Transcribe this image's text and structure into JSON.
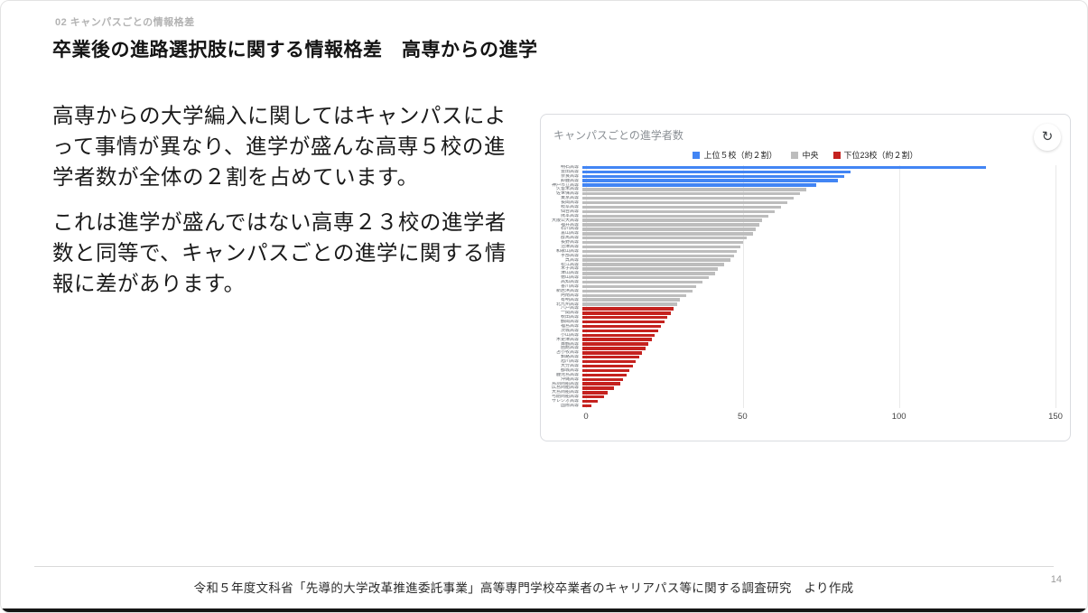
{
  "slide": {
    "eyebrow": "02 キャンパスごとの情報格差",
    "title": "卒業後の進路選択肢に関する情報格差　高専からの進学",
    "paragraphs": {
      "p1": "高専からの大学編入に関してはキャンパスによって事情が異なり、進学が盛んな高専５校の進学者数が全体の２割を占めています。",
      "p2": "これは進学が盛んではない高専２３校の進学者数と同等で、キャンパスごとの進学に関する情報に差があります。"
    },
    "footer": "令和５年度文科省「先導的大学改革推進委託事業」高等専門学校卒業者のキャリアパス等に関する調査研究　より作成",
    "page_number": "14"
  },
  "chart_data": {
    "type": "bar",
    "orientation": "horizontal",
    "title": "キャンパスごとの進学者数",
    "refresh_icon": "refresh-icon",
    "xlabel": "",
    "ylabel": "",
    "xlim": [
      0,
      150
    ],
    "xticks": [
      0,
      50,
      100,
      150
    ],
    "grid": true,
    "legend_position": "top-center",
    "legend": [
      {
        "label": "上位５校（約２割）",
        "tier": "top",
        "color": "#4285f4"
      },
      {
        "label": "中央",
        "tier": "mid",
        "color": "#bdbdbd"
      },
      {
        "label": "下位23校（約２割）",
        "tier": "low",
        "color": "#c5221f"
      }
    ],
    "tier_colors": {
      "top": "#4285f4",
      "mid": "#bdbdbd",
      "low": "#c5221f"
    },
    "bars": [
      {
        "label": "明石高専",
        "value": 128,
        "tier": "top"
      },
      {
        "label": "豊田高専",
        "value": 85,
        "tier": "top"
      },
      {
        "label": "奈良高専",
        "value": 83,
        "tier": "top"
      },
      {
        "label": "鈴鹿高専",
        "value": 81,
        "tier": "top"
      },
      {
        "label": "神戸市立高専",
        "value": 74,
        "tier": "top"
      },
      {
        "label": "久留米高専",
        "value": 71,
        "tier": "mid"
      },
      {
        "label": "佐世保高専",
        "value": 69,
        "tier": "mid"
      },
      {
        "label": "東京高専",
        "value": 67,
        "tier": "mid"
      },
      {
        "label": "長岡高専",
        "value": 65,
        "tier": "mid"
      },
      {
        "label": "岐阜高専",
        "value": 63,
        "tier": "mid"
      },
      {
        "label": "仙台高専",
        "value": 61,
        "tier": "mid"
      },
      {
        "label": "熊本高専",
        "value": 59,
        "tier": "mid"
      },
      {
        "label": "大阪公大高専",
        "value": 57,
        "tier": "mid"
      },
      {
        "label": "福井高専",
        "value": 56,
        "tier": "mid"
      },
      {
        "label": "石川高専",
        "value": 55,
        "tier": "mid"
      },
      {
        "label": "富山高専",
        "value": 54,
        "tier": "mid"
      },
      {
        "label": "群馬高専",
        "value": 52,
        "tier": "mid"
      },
      {
        "label": "長野高専",
        "value": 51,
        "tier": "mid"
      },
      {
        "label": "沼津高専",
        "value": 50,
        "tier": "mid"
      },
      {
        "label": "和歌山高専",
        "value": 49,
        "tier": "mid"
      },
      {
        "label": "宇部高専",
        "value": 48,
        "tier": "mid"
      },
      {
        "label": "呉高専",
        "value": 47,
        "tier": "mid"
      },
      {
        "label": "松江高専",
        "value": 45,
        "tier": "mid"
      },
      {
        "label": "米子高専",
        "value": 43,
        "tier": "mid"
      },
      {
        "label": "津山高専",
        "value": 42,
        "tier": "mid"
      },
      {
        "label": "徳山高専",
        "value": 40,
        "tier": "mid"
      },
      {
        "label": "高知高専",
        "value": 38,
        "tier": "mid"
      },
      {
        "label": "香川高専",
        "value": 36,
        "tier": "mid"
      },
      {
        "label": "新居浜高専",
        "value": 35,
        "tier": "mid"
      },
      {
        "label": "阿南高専",
        "value": 33,
        "tier": "mid"
      },
      {
        "label": "有明高専",
        "value": 31,
        "tier": "mid"
      },
      {
        "label": "北九州高専",
        "value": 30,
        "tier": "mid"
      },
      {
        "label": "八戸高専",
        "value": 29,
        "tier": "low"
      },
      {
        "label": "一関高専",
        "value": 28,
        "tier": "low"
      },
      {
        "label": "秋田高専",
        "value": 27,
        "tier": "low"
      },
      {
        "label": "鶴岡高専",
        "value": 26,
        "tier": "low"
      },
      {
        "label": "福島高専",
        "value": 25,
        "tier": "low"
      },
      {
        "label": "茨城高専",
        "value": 24,
        "tier": "low"
      },
      {
        "label": "小山高専",
        "value": 23,
        "tier": "low"
      },
      {
        "label": "木更津高専",
        "value": 22,
        "tier": "low"
      },
      {
        "label": "舞鶴高専",
        "value": 21,
        "tier": "low"
      },
      {
        "label": "函館高専",
        "value": 20,
        "tier": "low"
      },
      {
        "label": "苫小牧高専",
        "value": 19,
        "tier": "low"
      },
      {
        "label": "釧路高専",
        "value": 18,
        "tier": "low"
      },
      {
        "label": "旭川高専",
        "value": 17,
        "tier": "low"
      },
      {
        "label": "大分高専",
        "value": 16,
        "tier": "low"
      },
      {
        "label": "都城高専",
        "value": 15,
        "tier": "low"
      },
      {
        "label": "鹿児島高専",
        "value": 14,
        "tier": "low"
      },
      {
        "label": "沖縄高専",
        "value": 13,
        "tier": "low"
      },
      {
        "label": "鳥羽商船高専",
        "value": 12,
        "tier": "low"
      },
      {
        "label": "広島商船高専",
        "value": 10,
        "tier": "low"
      },
      {
        "label": "大島商船高専",
        "value": 8,
        "tier": "low"
      },
      {
        "label": "弓削商船高専",
        "value": 7,
        "tier": "low"
      },
      {
        "label": "サレジオ高専",
        "value": 5,
        "tier": "low"
      },
      {
        "label": "国際高専",
        "value": 3,
        "tier": "low"
      }
    ]
  }
}
